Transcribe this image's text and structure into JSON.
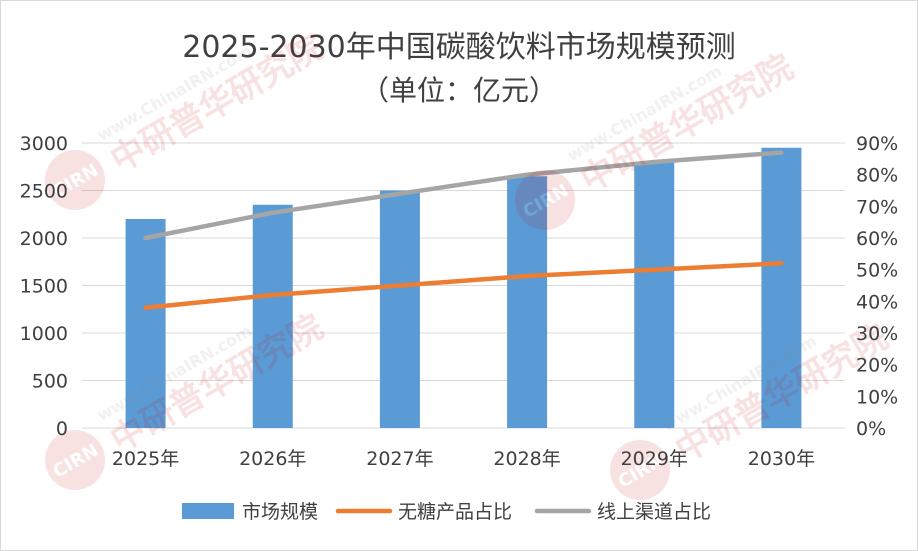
{
  "chart_data": {
    "type": "bar",
    "title": "2025-2030年中国碳酸饮料市场规模预测",
    "subtitle": "（单位：亿元）",
    "categories": [
      "2025年",
      "2026年",
      "2027年",
      "2028年",
      "2029年",
      "2030年"
    ],
    "series": [
      {
        "name": "市场规模",
        "type": "bar",
        "axis": "left",
        "color": "#5b9bd5",
        "values": [
          2200,
          2350,
          2500,
          2650,
          2800,
          2950
        ]
      },
      {
        "name": "无糖产品占比",
        "type": "line",
        "axis": "right",
        "color": "#ed7d31",
        "values": [
          0.38,
          0.42,
          0.45,
          0.48,
          0.5,
          0.52
        ]
      },
      {
        "name": "线上渠道占比",
        "type": "line",
        "axis": "right",
        "color": "#a5a5a5",
        "values": [
          0.6,
          0.68,
          0.74,
          0.8,
          0.84,
          0.87
        ]
      }
    ],
    "y_left": {
      "min": 0,
      "max": 3000,
      "ticks": [
        "0",
        "500",
        "1000",
        "1500",
        "2000",
        "2500",
        "3000"
      ]
    },
    "y_right": {
      "min": 0,
      "max": 0.9,
      "ticks": [
        "0%",
        "10%",
        "20%",
        "30%",
        "40%",
        "50%",
        "60%",
        "70%",
        "80%",
        "90%"
      ]
    },
    "grid": true,
    "legend_position": "bottom",
    "watermark": {
      "text_top": "www.ChinaIRN.com",
      "text_main": "中研普华研究院",
      "logo": "CIRN"
    }
  }
}
